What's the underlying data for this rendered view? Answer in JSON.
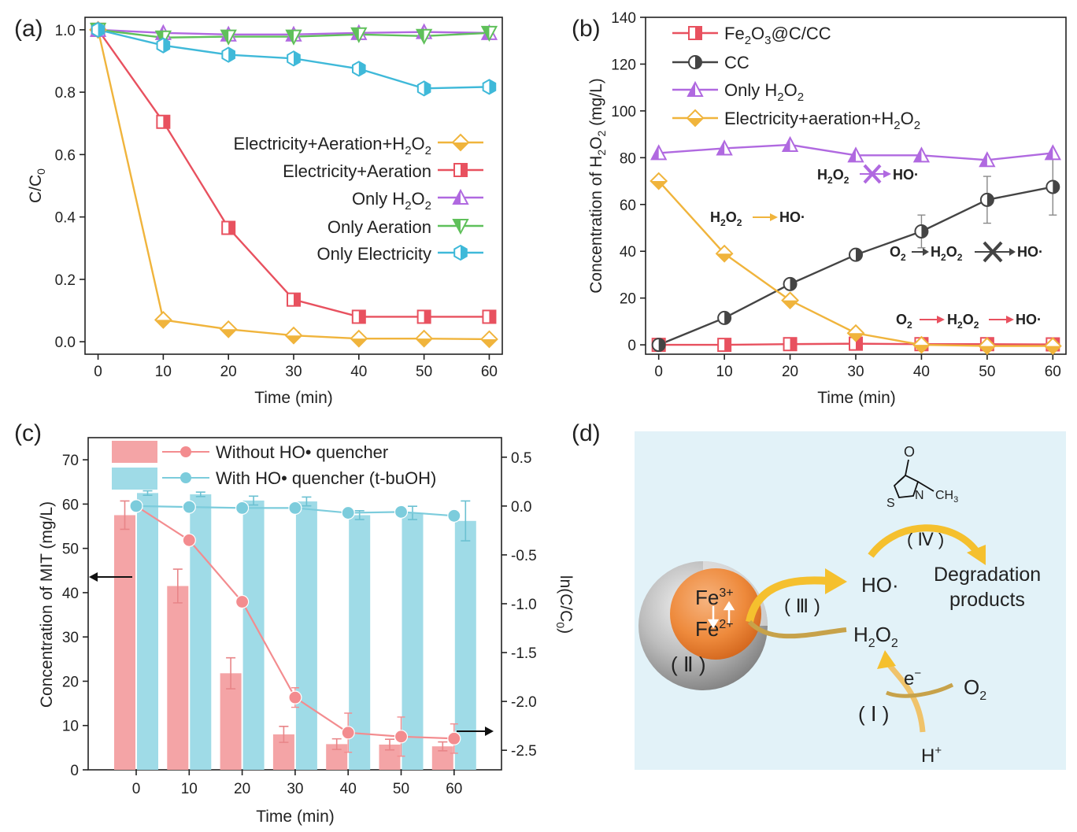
{
  "chart_data": [
    {
      "panel": "(a)",
      "type": "line",
      "xlabel": "Time (min)",
      "ylabel": "C/C0",
      "xlim": [
        -2,
        62
      ],
      "ylim": [
        -0.04,
        1.04
      ],
      "xticks": [
        0,
        10,
        20,
        30,
        40,
        50,
        60
      ],
      "yticks": [
        0.0,
        0.2,
        0.4,
        0.6,
        0.8,
        1.0
      ],
      "ytick_labels": [
        "0.0",
        "0.2",
        "0.4",
        "0.6",
        "0.8",
        "1.0"
      ],
      "x": [
        0,
        10,
        20,
        30,
        40,
        50,
        60
      ],
      "series": [
        {
          "name": "Electricity+Aeration+H2O2",
          "color": "#f0b43c",
          "marker": "diamond",
          "values": [
            1.0,
            0.07,
            0.04,
            0.02,
            0.01,
            0.01,
            0.008
          ]
        },
        {
          "name": "Electricity+Aeration",
          "color": "#e8515f",
          "marker": "square",
          "values": [
            1.0,
            0.705,
            0.365,
            0.135,
            0.08,
            0.08,
            0.08
          ]
        },
        {
          "name": "Only H2O2",
          "color": "#b069e0",
          "marker": "triangle-up",
          "values": [
            1.0,
            0.99,
            0.985,
            0.985,
            0.99,
            0.993,
            0.99
          ]
        },
        {
          "name": "Only Aeration",
          "color": "#5fc05a",
          "marker": "triangle-down",
          "values": [
            1.0,
            0.975,
            0.978,
            0.978,
            0.985,
            0.98,
            0.99
          ]
        },
        {
          "name": "Only Electricity",
          "color": "#3fb9d9",
          "marker": "hexagon",
          "values": [
            1.0,
            0.95,
            0.92,
            0.908,
            0.875,
            0.812,
            0.817
          ]
        }
      ],
      "legend": [
        "Electricity+Aeration+H2O2",
        "Electricity+Aeration",
        "Only H2O2",
        "Only Aeration",
        "Only Electricity"
      ]
    },
    {
      "panel": "(b)",
      "type": "line",
      "xlabel": "Time (min)",
      "ylabel": "Concentration of H2O2 (mg/L)",
      "xlim": [
        -2,
        62
      ],
      "ylim": [
        -4,
        140
      ],
      "xticks": [
        0,
        10,
        20,
        30,
        40,
        50,
        60
      ],
      "yticks": [
        0,
        20,
        40,
        60,
        80,
        100,
        120,
        140
      ],
      "x": [
        0,
        10,
        20,
        30,
        40,
        50,
        60
      ],
      "series": [
        {
          "name": "Fe2O3@C/CC",
          "color": "#e8515f",
          "marker": "square",
          "values": [
            0,
            0,
            0.3,
            0.5,
            0.3,
            0.3,
            0.2
          ]
        },
        {
          "name": "CC",
          "color": "#444444",
          "marker": "circle-half",
          "values": [
            0,
            11.5,
            26,
            38.5,
            48.5,
            62,
            67.5
          ],
          "errors": [
            0,
            1,
            1,
            1,
            7,
            10,
            12
          ]
        },
        {
          "name": "Only H2O2",
          "color": "#b069e0",
          "marker": "triangle-up",
          "values": [
            82,
            84,
            85.5,
            81,
            81,
            79,
            82
          ]
        },
        {
          "name": "Electricity+aeration+H2O2",
          "color": "#f0b43c",
          "marker": "diamond",
          "values": [
            70,
            39,
            19,
            5,
            0,
            -0.5,
            -0.5
          ]
        }
      ],
      "legend": [
        "Fe2O3@C/CC",
        "CC",
        "Only H2O2",
        "Electricity+aeration+H2O2"
      ],
      "annotations": [
        {
          "text": "H2O2 → HO· (blocked)",
          "color": "#b069e0"
        },
        {
          "text": "H2O2 → HO·",
          "color": "#f0b43c"
        },
        {
          "text": "O2 → H2O2 → HO· (blocked)",
          "color": "#444444"
        },
        {
          "text": "O2 → H2O2 → HO·",
          "color": "#e8515f"
        }
      ]
    },
    {
      "panel": "(c)",
      "type": "bar",
      "xlabel": "Time (min)",
      "ylabel": "Concentration of MIT (mg/L)",
      "ylabel_right": "ln(C/C0)",
      "categories": [
        "0",
        "10",
        "20",
        "30",
        "40",
        "50",
        "60"
      ],
      "ylim": [
        0,
        75
      ],
      "yticks": [
        0,
        10,
        20,
        30,
        40,
        50,
        60,
        70
      ],
      "ylim_right": [
        -2.7,
        0.7
      ],
      "yticks_right": [
        0.5,
        0.0,
        -0.5,
        -1.0,
        -1.5,
        -2.0,
        -2.5
      ],
      "ytick_labels_right": [
        "0.5",
        "0.0",
        "-0.5",
        "-1.0",
        "-1.5",
        "-2.0",
        "-2.5"
      ],
      "series": [
        {
          "name": "Without HO• quencher (bars)",
          "color": "#f4a4a6",
          "values": [
            57.5,
            41.5,
            21.8,
            8.0,
            5.8,
            5.7,
            5.3
          ],
          "errors": [
            3.2,
            3.8,
            3.5,
            1.8,
            1.2,
            1.2,
            1.0
          ]
        },
        {
          "name": "With HO• quencher (t-buOH) (bars)",
          "color": "#9fdbe7",
          "values": [
            62.5,
            62.2,
            60.8,
            60.6,
            57.5,
            58.0,
            56.2
          ],
          "errors": [
            0.5,
            0.5,
            1.0,
            1.0,
            1.0,
            1.5,
            4.5
          ]
        },
        {
          "name": "Without HO• quencher",
          "axis": "right",
          "color": "#f38c8f",
          "values": [
            0.0,
            -0.35,
            -0.98,
            -1.96,
            -2.32,
            -2.36,
            -2.38
          ],
          "errors": [
            0,
            0,
            0,
            0.1,
            0.2,
            0.2,
            0.15
          ]
        },
        {
          "name": "With HO• quencher (t-buOH)",
          "axis": "right",
          "color": "#7cccdc",
          "values": [
            0.0,
            -0.01,
            -0.02,
            -0.02,
            -0.07,
            -0.06,
            -0.1
          ],
          "errors": [
            0,
            0,
            0.02,
            0.02,
            0.03,
            0.03,
            0.04
          ]
        }
      ],
      "legend": [
        "Without HO• quencher",
        "With HO• quencher (t-buOH)"
      ]
    }
  ],
  "text": {
    "panel_a": "(a)",
    "panel_b": "(b)",
    "panel_c": "(c)",
    "panel_d": "(d)",
    "b_note_1_left": "H",
    "b_note_1_right": "HO·",
    "b_note_2_left": "H",
    "b_note_2_right": "HO·",
    "b_note_3_a": "O",
    "b_note_3_b": "H",
    "b_note_3_c": "HO·",
    "b_note_4_a": "O",
    "b_note_4_b": "H",
    "b_note_4_c": "HO·",
    "d_fe3": "Fe",
    "d_fe3_sup": "3+",
    "d_fe2": "Fe",
    "d_fe2_sup": "2+",
    "d_ho": "HO·",
    "d_h2o2_h": "H",
    "d_h2o2_o": "O",
    "d_o2": "O",
    "d_e": "e",
    "d_e_sup": "−",
    "d_h": "H",
    "d_h_sup": "+",
    "d_degradation": "Degradation",
    "d_products": "products",
    "d_step1": "( Ⅰ )",
    "d_step2": "( Ⅱ )",
    "d_step3": "( Ⅲ )",
    "d_step4": "( Ⅳ )",
    "d_mol_o": "O",
    "d_mol_n": "N",
    "d_mol_s": "S",
    "d_mol_ch3": "CH",
    "d_mol_ch3_sub": "3"
  }
}
